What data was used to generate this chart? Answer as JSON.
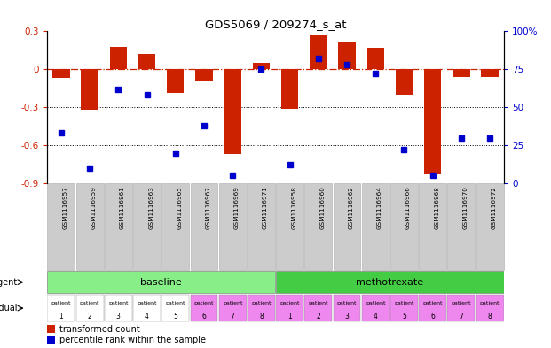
{
  "title": "GDS5069 / 209274_s_at",
  "samples": [
    "GSM1116957",
    "GSM1116959",
    "GSM1116961",
    "GSM1116963",
    "GSM1116965",
    "GSM1116967",
    "GSM1116969",
    "GSM1116971",
    "GSM1116958",
    "GSM1116960",
    "GSM1116962",
    "GSM1116964",
    "GSM1116966",
    "GSM1116968",
    "GSM1116970",
    "GSM1116972"
  ],
  "transformed_count": [
    -0.07,
    -0.32,
    0.18,
    0.12,
    -0.19,
    -0.09,
    -0.67,
    0.05,
    -0.31,
    0.27,
    0.22,
    0.17,
    -0.2,
    -0.82,
    -0.06,
    -0.06
  ],
  "percentile_rank": [
    33,
    10,
    62,
    58,
    20,
    38,
    5,
    75,
    12,
    82,
    78,
    72,
    22,
    5,
    30,
    30
  ],
  "ylim_left": [
    -0.9,
    0.3
  ],
  "ylim_right": [
    0,
    100
  ],
  "yticks_left": [
    -0.9,
    -0.6,
    -0.3,
    0.0,
    0.3
  ],
  "yticks_right": [
    0,
    25,
    50,
    75,
    100
  ],
  "hline_y": 0.0,
  "dotted_lines": [
    -0.3,
    -0.6
  ],
  "bar_color": "#cc2200",
  "dot_color": "#0000cc",
  "agent_groups": [
    {
      "label": "baseline",
      "start": 0,
      "end": 8,
      "color": "#88ee88"
    },
    {
      "label": "methotrexate",
      "start": 8,
      "end": 16,
      "color": "#44cc44"
    }
  ],
  "individual_labels_top": [
    "patient",
    "patient",
    "patient",
    "patient",
    "patient",
    "patient",
    "patient",
    "patient",
    "patient",
    "patient",
    "patient",
    "patient",
    "patient",
    "patient",
    "patient",
    "patient"
  ],
  "individual_numbers": [
    "1",
    "2",
    "3",
    "4",
    "5",
    "6",
    "7",
    "8",
    "1",
    "2",
    "3",
    "4",
    "5",
    "6",
    "7",
    "8"
  ],
  "individual_colors": [
    "#ffffff",
    "#ffffff",
    "#ffffff",
    "#ffffff",
    "#ffffff",
    "#ee88ee",
    "#ee88ee",
    "#ee88ee",
    "#ee88ee",
    "#ee88ee",
    "#ee88ee",
    "#ee88ee",
    "#ee88ee",
    "#ee88ee",
    "#ee88ee",
    "#ee88ee"
  ],
  "legend_bar_label": "transformed count",
  "legend_dot_label": "percentile rank within the sample",
  "tick_color_left": "#cc2200",
  "tick_color_right": "#0000cc",
  "background_plot": "#ffffff",
  "sample_box_color": "#cccccc",
  "sample_box_edge": "#aaaaaa"
}
